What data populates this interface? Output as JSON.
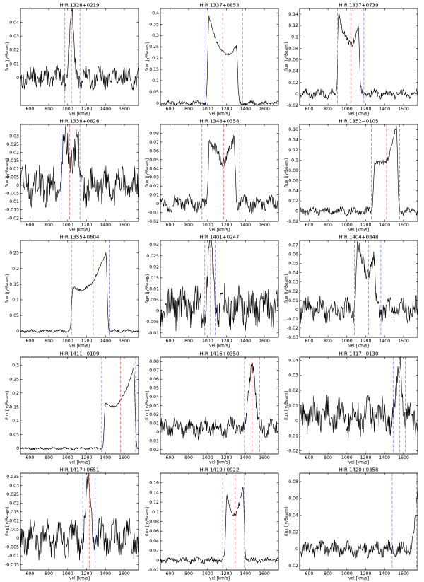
{
  "figure": {
    "common_xlabel": "vel [km/s]",
    "common_ylabel": "flux [Jy/Beam]"
  },
  "chart_data": [
    {
      "type": "line",
      "title": "HIR 1328+0219",
      "xlabel": "vel [km/s]",
      "ylabel": "flux [Jy/Beam]",
      "xlim": [
        500,
        1750
      ],
      "ylim": [
        -0.02,
        0.05
      ],
      "xticks": [
        600,
        800,
        1000,
        1200,
        1400,
        1600
      ],
      "yticks": [
        0,
        0.01,
        0.02,
        0.03,
        0.04
      ],
      "ytick_labels": [
        "0",
        "0.01",
        "0.02",
        "0.03",
        "0.04"
      ],
      "vlines": {
        "blue": [
          970,
          1130
        ],
        "red": [
          1040
        ]
      },
      "profile": {
        "center": 1040,
        "width": 80,
        "peak": 0.047,
        "horns": false,
        "noise": 0.006,
        "baseline": 0
      }
    },
    {
      "type": "line",
      "title": "HIR 1337+0853",
      "xlabel": "vel [km/s]",
      "ylabel": "flux [Jy/Beam]",
      "xlim": [
        500,
        1750
      ],
      "ylim": [
        -0.01,
        0.42
      ],
      "xticks": [
        600,
        800,
        1000,
        1200,
        1400,
        1600
      ],
      "yticks": [
        0,
        0.05,
        0.1,
        0.15,
        0.2,
        0.25,
        0.3,
        0.35,
        0.4
      ],
      "ytick_labels": [
        "0",
        "0.05",
        "0.1",
        "0.15",
        "0.2",
        "0.25",
        "0.3",
        "0.35",
        "0.4"
      ],
      "vlines": {
        "blue": [
          960,
          1370
        ],
        "red": [
          1160
        ]
      },
      "profile": {
        "center": 1160,
        "width": 290,
        "peak": 0.38,
        "peak2": 0.25,
        "horns": true,
        "noise": 0.008,
        "baseline": 0
      }
    },
    {
      "type": "line",
      "title": "HIR 1337+0739",
      "xlabel": "vel [km/s]",
      "ylabel": "flux [Jy/Beam]",
      "xlim": [
        500,
        1750
      ],
      "ylim": [
        -0.02,
        0.15
      ],
      "xticks": [
        600,
        800,
        1000,
        1200,
        1400,
        1600
      ],
      "yticks": [
        -0.02,
        0,
        0.02,
        0.04,
        0.06,
        0.08,
        0.1,
        0.12,
        0.14
      ],
      "ytick_labels": [
        "-0.02",
        "0",
        "0.02",
        "0.04",
        "0.06",
        "0.08",
        "0.1",
        "0.12",
        "0.14"
      ],
      "vlines": {
        "blue": [
          900,
          1180
        ],
        "red": [
          1040
        ]
      },
      "profile": {
        "center": 1020,
        "width": 200,
        "peak": 0.14,
        "peak2": 0.12,
        "horns": true,
        "noise": 0.006,
        "baseline": 0
      }
    },
    {
      "type": "line",
      "title": "HIR 1338+0826",
      "xlabel": "vel [km/s]",
      "ylabel": "flux [Jy/Beam]",
      "xlim": [
        500,
        1750
      ],
      "ylim": [
        -0.022,
        0.037
      ],
      "xticks": [
        600,
        800,
        1000,
        1200,
        1400,
        1600
      ],
      "yticks": [
        -0.02,
        -0.015,
        -0.01,
        -0.005,
        0,
        0.005,
        0.01,
        0.015,
        0.02,
        0.025,
        0.03
      ],
      "ytick_labels": [
        "-0.02",
        "-0.015",
        "-0.01",
        "-0.005",
        "0",
        "0.005",
        "0.01",
        "0.015",
        "0.02",
        "0.025",
        "0.03"
      ],
      "vlines": {
        "blue": [
          930,
          1130
        ],
        "red": [
          1020
        ]
      },
      "profile": {
        "center": 1030,
        "width": 150,
        "peak": 0.028,
        "peak2": 0.028,
        "horns": true,
        "noise": 0.009,
        "baseline": 0
      }
    },
    {
      "type": "line",
      "title": "HIR 1348+0358",
      "xlabel": "vel [km/s]",
      "ylabel": "flux [Jy/Beam]",
      "xlim": [
        500,
        1750
      ],
      "ylim": [
        -0.02,
        0.09
      ],
      "xticks": [
        600,
        800,
        1000,
        1200,
        1400,
        1600
      ],
      "yticks": [
        -0.02,
        -0.01,
        0,
        0.01,
        0.02,
        0.03,
        0.04,
        0.05,
        0.06,
        0.07,
        0.08
      ],
      "ytick_labels": [
        "-0.02",
        "-0.01",
        "0",
        "0.01",
        "0.02",
        "0.03",
        "0.04",
        "0.05",
        "0.06",
        "0.07",
        "0.08"
      ],
      "vlines": {
        "blue": [
          940,
          1340
        ],
        "red": [
          1170
        ]
      },
      "profile": {
        "center": 1150,
        "width": 260,
        "peak": 0.078,
        "peak2": 0.072,
        "horns": true,
        "noise": 0.007,
        "baseline": 0
      }
    },
    {
      "type": "line",
      "title": "HIR 1352−0105",
      "xlabel": "vel [km/s]",
      "ylabel": "flux [Jy/Beam]",
      "xlim": [
        500,
        1750
      ],
      "ylim": [
        -0.02,
        0.17
      ],
      "xticks": [
        600,
        800,
        1000,
        1200,
        1400,
        1600
      ],
      "yticks": [
        -0.02,
        0,
        0.02,
        0.04,
        0.06,
        0.08,
        0.1,
        0.12,
        0.14,
        0.16
      ],
      "ytick_labels": [
        "-0.02",
        "0",
        "0.02",
        "0.04",
        "0.06",
        "0.08",
        "0.1",
        "0.12",
        "0.14",
        "0.16"
      ],
      "vlines": {
        "blue": [
          1260,
          1560
        ],
        "red": [
          1420
        ]
      },
      "profile": {
        "center": 1410,
        "width": 230,
        "peak": 0.1,
        "peak2": 0.165,
        "horns": true,
        "noise": 0.006,
        "baseline": 0
      }
    },
    {
      "type": "line",
      "title": "HIR 1355+0604",
      "xlabel": "vel [km/s]",
      "ylabel": "flux [Jy/Beam]",
      "xlim": [
        500,
        1750
      ],
      "ylim": [
        -0.02,
        0.29
      ],
      "xticks": [
        600,
        800,
        1000,
        1200,
        1400,
        1600
      ],
      "yticks": [
        0,
        0.05,
        0.1,
        0.15,
        0.2,
        0.25
      ],
      "ytick_labels": [
        "0",
        "0.05",
        "0.1",
        "0.15",
        "0.2",
        "0.25"
      ],
      "vlines": {
        "blue": [
          1040,
          1440
        ],
        "red": [
          1270
        ]
      },
      "profile": {
        "center": 1230,
        "width": 350,
        "peak": 0.14,
        "peak2": 0.25,
        "horns": true,
        "noise": 0.004,
        "baseline": 0
      }
    },
    {
      "type": "line",
      "title": "HIR 1401+0247",
      "xlabel": "vel [km/s]",
      "ylabel": "flux [Jy/Beam]",
      "xlim": [
        500,
        1750
      ],
      "ylim": [
        -0.012,
        0.032
      ],
      "xticks": [
        600,
        800,
        1000,
        1200,
        1400,
        1600
      ],
      "yticks": [
        -0.01,
        -0.005,
        0,
        0.005,
        0.01,
        0.015,
        0.02,
        0.025,
        0.03
      ],
      "ytick_labels": [
        "-0.01",
        "-0.005",
        "0",
        "0.005",
        "0.01",
        "0.015",
        "0.02",
        "0.025",
        "0.03"
      ],
      "vlines": {
        "blue": [
          970,
          1080
        ],
        "red": [
          1030
        ]
      },
      "profile": {
        "center": 1030,
        "width": 90,
        "peak": 0.028,
        "horns": false,
        "noise": 0.007,
        "baseline": 0.002
      }
    },
    {
      "type": "line",
      "title": "HIR 1404+0848",
      "xlabel": "vel [km/s]",
      "ylabel": "flux [Jy/Beam]",
      "xlim": [
        500,
        1750
      ],
      "ylim": [
        -0.03,
        0.075
      ],
      "xticks": [
        600,
        800,
        1000,
        1200,
        1400,
        1600
      ],
      "yticks": [
        -0.03,
        -0.02,
        -0.01,
        0,
        0.01,
        0.02,
        0.03,
        0.04,
        0.05,
        0.06,
        0.07
      ],
      "ytick_labels": [
        "-0.03",
        "-0.02",
        "-0.01",
        "0",
        "0.01",
        "0.02",
        "0.03",
        "0.04",
        "0.05",
        "0.06",
        "0.07"
      ],
      "vlines": {
        "blue": [
          1080,
          1360
        ],
        "red": [
          1230
        ]
      },
      "profile": {
        "center": 1200,
        "width": 180,
        "peak": 0.068,
        "peak2": 0.05,
        "horns": true,
        "noise": 0.01,
        "baseline": 0
      }
    },
    {
      "type": "line",
      "title": "HIR 1411−0109",
      "xlabel": "vel [km/s]",
      "ylabel": "flux [Jy/Beam]",
      "xlim": [
        500,
        1750
      ],
      "ylim": [
        -0.02,
        0.33
      ],
      "xticks": [
        600,
        800,
        1000,
        1200,
        1400,
        1600
      ],
      "yticks": [
        0,
        0.05,
        0.1,
        0.15,
        0.2,
        0.25,
        0.3
      ],
      "ytick_labels": [
        "0",
        "0.05",
        "0.1",
        "0.15",
        "0.2",
        "0.25",
        "0.3"
      ],
      "vlines": {
        "blue": [
          1360,
          1720
        ],
        "red": [
          1560
        ]
      },
      "profile": {
        "center": 1550,
        "width": 300,
        "peak": 0.16,
        "peak2": 0.29,
        "horns": true,
        "noise": 0.004,
        "baseline": 0
      }
    },
    {
      "type": "line",
      "title": "HIR 1416+0350",
      "xlabel": "vel [km/s]",
      "ylabel": "flux [Jy/Beam]",
      "xlim": [
        500,
        1750
      ],
      "ylim": [
        -0.025,
        0.085
      ],
      "xticks": [
        600,
        800,
        1000,
        1200,
        1400,
        1600
      ],
      "yticks": [
        -0.02,
        -0.01,
        0,
        0.01,
        0.02,
        0.03,
        0.04,
        0.05,
        0.06,
        0.07,
        0.08
      ],
      "ytick_labels": [
        "-0.02",
        "-0.01",
        "0",
        "0.01",
        "0.02",
        "0.03",
        "0.04",
        "0.05",
        "0.06",
        "0.07",
        "0.08"
      ],
      "vlines": {
        "blue": [
          1390,
          1550
        ],
        "red": [
          1470
        ]
      },
      "profile": {
        "center": 1470,
        "width": 110,
        "peak": 0.078,
        "horns": false,
        "noise": 0.009,
        "baseline": 0.005
      }
    },
    {
      "type": "line",
      "title": "HIR 1417−0130",
      "xlabel": "vel [km/s]",
      "ylabel": "flux [Jy/Beam]",
      "xlim": [
        500,
        1750
      ],
      "ylim": [
        -0.022,
        0.042
      ],
      "xticks": [
        600,
        800,
        1000,
        1200,
        1400,
        1600
      ],
      "yticks": [
        -0.02,
        -0.01,
        0,
        0.01,
        0.02,
        0.03,
        0.04
      ],
      "ytick_labels": [
        "-0.02",
        "-0.01",
        "0",
        "0.01",
        "0.02",
        "0.03",
        "0.04"
      ],
      "vlines": {
        "blue": [
          1490,
          1620
        ],
        "red": [
          1560
        ]
      },
      "profile": {
        "center": 1560,
        "width": 80,
        "peak": 0.037,
        "horns": false,
        "noise": 0.009,
        "baseline": 0.003
      }
    },
    {
      "type": "line",
      "title": "HIR 1417+0651",
      "xlabel": "vel [km/s]",
      "ylabel": "flux [Jy/Beam]",
      "xlim": [
        500,
        1750
      ],
      "ylim": [
        -0.018,
        0.037
      ],
      "xticks": [
        600,
        800,
        1000,
        1200,
        1400,
        1600
      ],
      "yticks": [
        -0.015,
        -0.01,
        -0.005,
        0,
        0.005,
        0.01,
        0.015,
        0.02,
        0.025,
        0.03,
        0.035
      ],
      "ytick_labels": [
        "-0.015",
        "-0.01",
        "-0.005",
        "0",
        "0.005",
        "0.01",
        "0.015",
        "0.02",
        "0.025",
        "0.03",
        "0.035"
      ],
      "vlines": {
        "blue": [
          1160,
          1290
        ],
        "red": [
          1230
        ]
      },
      "profile": {
        "center": 1220,
        "width": 90,
        "peak": 0.032,
        "horns": false,
        "noise": 0.008,
        "baseline": 0
      }
    },
    {
      "type": "line",
      "title": "HIR 1419+0922",
      "xlabel": "vel [km/s]",
      "ylabel": "flux [Jy/Beam]",
      "xlim": [
        500,
        1750
      ],
      "ylim": [
        -0.02,
        0.18
      ],
      "xticks": [
        600,
        800,
        1000,
        1200,
        1400,
        1600
      ],
      "yticks": [
        -0.02,
        0,
        0.02,
        0.04,
        0.06,
        0.08,
        0.1,
        0.12,
        0.14,
        0.16
      ],
      "ytick_labels": [
        "-0.02",
        "0",
        "0.02",
        "0.04",
        "0.06",
        "0.08",
        "0.1",
        "0.12",
        "0.14",
        "0.16"
      ],
      "vlines": {
        "blue": [
          1160,
          1390
        ],
        "red": [
          1290
        ]
      },
      "profile": {
        "center": 1290,
        "width": 170,
        "peak": 0.13,
        "peak2": 0.15,
        "horns": true,
        "noise": 0.005,
        "baseline": 0
      }
    },
    {
      "type": "line",
      "title": "HIR 1420+0358",
      "xlabel": "vel [km/s]",
      "ylabel": "flux [Jy/Beam]",
      "xlim": [
        500,
        1750
      ],
      "ylim": [
        -0.025,
        0.09
      ],
      "xticks": [
        600,
        800,
        1000,
        1200,
        1400,
        1600
      ],
      "yticks": [
        -0.02,
        0,
        0.02,
        0.04,
        0.06,
        0.08
      ],
      "ytick_labels": [
        "-0.02",
        "0",
        "0.02",
        "0.04",
        "0.06",
        "0.08"
      ],
      "vlines": {
        "blue": [
          1480
        ],
        "red": [
          1740
        ]
      },
      "profile": {
        "center": 1760,
        "width": 200,
        "peak": 0.08,
        "horns": false,
        "noise": 0.007,
        "baseline": 0,
        "rising_edge": true
      }
    }
  ]
}
